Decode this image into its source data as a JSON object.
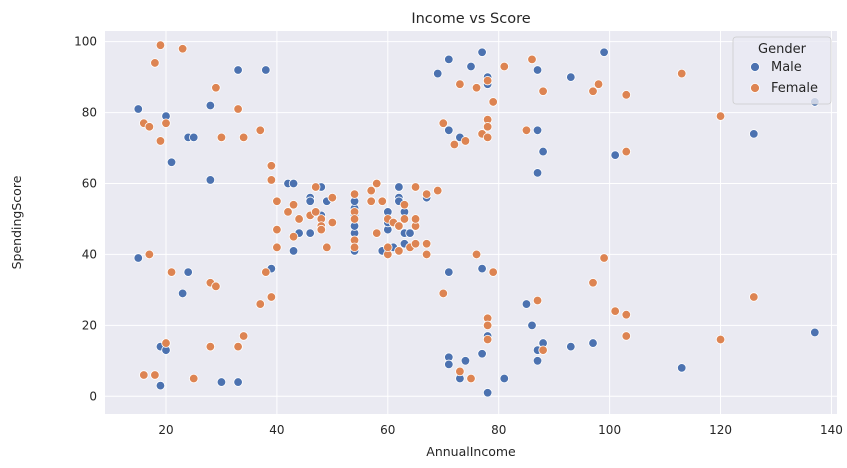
{
  "chart_data": {
    "type": "scatter",
    "title": "Income vs Score",
    "xlabel": "AnnualIncome",
    "ylabel": "SpendingScore",
    "xlim": [
      9,
      141
    ],
    "ylim": [
      -5,
      103
    ],
    "xticks": [
      20,
      40,
      60,
      80,
      100,
      120,
      140
    ],
    "yticks": [
      0,
      20,
      40,
      60,
      80,
      100
    ],
    "grid": true,
    "legend": {
      "title": "Gender",
      "placement": "top-right"
    },
    "series": [
      {
        "name": "Male",
        "color": "#4c72b0",
        "points": [
          [
            15,
            39
          ],
          [
            15,
            81
          ],
          [
            19,
            3
          ],
          [
            19,
            14
          ],
          [
            20,
            13
          ],
          [
            20,
            79
          ],
          [
            21,
            66
          ],
          [
            23,
            29
          ],
          [
            24,
            35
          ],
          [
            24,
            73
          ],
          [
            25,
            73
          ],
          [
            28,
            82
          ],
          [
            28,
            61
          ],
          [
            30,
            4
          ],
          [
            33,
            4
          ],
          [
            33,
            92
          ],
          [
            38,
            92
          ],
          [
            39,
            36
          ],
          [
            42,
            60
          ],
          [
            43,
            60
          ],
          [
            43,
            41
          ],
          [
            44,
            46
          ],
          [
            46,
            46
          ],
          [
            46,
            56
          ],
          [
            46,
            55
          ],
          [
            48,
            59
          ],
          [
            48,
            51
          ],
          [
            49,
            55
          ],
          [
            50,
            56
          ],
          [
            54,
            41
          ],
          [
            54,
            46
          ],
          [
            54,
            48
          ],
          [
            54,
            51
          ],
          [
            54,
            53
          ],
          [
            54,
            55
          ],
          [
            59,
            41
          ],
          [
            60,
            52
          ],
          [
            60,
            47
          ],
          [
            60,
            49
          ],
          [
            61,
            42
          ],
          [
            62,
            56
          ],
          [
            62,
            55
          ],
          [
            62,
            59
          ],
          [
            63,
            43
          ],
          [
            63,
            46
          ],
          [
            63,
            52
          ],
          [
            64,
            46
          ],
          [
            67,
            56
          ],
          [
            69,
            91
          ],
          [
            71,
            95
          ],
          [
            71,
            75
          ],
          [
            71,
            35
          ],
          [
            71,
            11
          ],
          [
            71,
            9
          ],
          [
            73,
            73
          ],
          [
            73,
            5
          ],
          [
            74,
            10
          ],
          [
            75,
            93
          ],
          [
            77,
            97
          ],
          [
            77,
            36
          ],
          [
            77,
            12
          ],
          [
            78,
            90
          ],
          [
            78,
            88
          ],
          [
            78,
            17
          ],
          [
            78,
            1
          ],
          [
            81,
            5
          ],
          [
            85,
            26
          ],
          [
            86,
            20
          ],
          [
            87,
            92
          ],
          [
            87,
            75
          ],
          [
            87,
            63
          ],
          [
            87,
            13
          ],
          [
            87,
            10
          ],
          [
            88,
            69
          ],
          [
            88,
            15
          ],
          [
            93,
            90
          ],
          [
            93,
            14
          ],
          [
            97,
            15
          ],
          [
            99,
            97
          ],
          [
            101,
            68
          ],
          [
            113,
            8
          ],
          [
            126,
            74
          ],
          [
            137,
            83
          ],
          [
            137,
            18
          ]
        ]
      },
      {
        "name": "Female",
        "color": "#dd8452",
        "points": [
          [
            16,
            6
          ],
          [
            16,
            77
          ],
          [
            17,
            40
          ],
          [
            17,
            76
          ],
          [
            18,
            6
          ],
          [
            18,
            94
          ],
          [
            19,
            99
          ],
          [
            19,
            72
          ],
          [
            20,
            15
          ],
          [
            20,
            77
          ],
          [
            21,
            35
          ],
          [
            23,
            98
          ],
          [
            25,
            5
          ],
          [
            28,
            14
          ],
          [
            28,
            32
          ],
          [
            29,
            31
          ],
          [
            29,
            87
          ],
          [
            30,
            73
          ],
          [
            33,
            14
          ],
          [
            33,
            81
          ],
          [
            34,
            17
          ],
          [
            34,
            73
          ],
          [
            37,
            26
          ],
          [
            37,
            75
          ],
          [
            38,
            35
          ],
          [
            39,
            28
          ],
          [
            39,
            61
          ],
          [
            39,
            65
          ],
          [
            40,
            55
          ],
          [
            40,
            47
          ],
          [
            40,
            42
          ],
          [
            42,
            52
          ],
          [
            43,
            54
          ],
          [
            43,
            45
          ],
          [
            44,
            50
          ],
          [
            46,
            51
          ],
          [
            47,
            52
          ],
          [
            47,
            59
          ],
          [
            48,
            50
          ],
          [
            48,
            48
          ],
          [
            48,
            47
          ],
          [
            49,
            42
          ],
          [
            50,
            49
          ],
          [
            50,
            56
          ],
          [
            54,
            57
          ],
          [
            54,
            44
          ],
          [
            54,
            42
          ],
          [
            54,
            52
          ],
          [
            54,
            50
          ],
          [
            57,
            58
          ],
          [
            57,
            55
          ],
          [
            58,
            60
          ],
          [
            58,
            46
          ],
          [
            59,
            55
          ],
          [
            60,
            40
          ],
          [
            60,
            42
          ],
          [
            60,
            50
          ],
          [
            61,
            49
          ],
          [
            62,
            41
          ],
          [
            62,
            48
          ],
          [
            63,
            50
          ],
          [
            63,
            54
          ],
          [
            64,
            42
          ],
          [
            65,
            59
          ],
          [
            65,
            48
          ],
          [
            65,
            50
          ],
          [
            65,
            43
          ],
          [
            67,
            43
          ],
          [
            67,
            40
          ],
          [
            67,
            57
          ],
          [
            69,
            58
          ],
          [
            70,
            77
          ],
          [
            70,
            29
          ],
          [
            72,
            71
          ],
          [
            73,
            88
          ],
          [
            74,
            72
          ],
          [
            75,
            5
          ],
          [
            76,
            40
          ],
          [
            76,
            87
          ],
          [
            77,
            74
          ],
          [
            78,
            89
          ],
          [
            78,
            78
          ],
          [
            78,
            73
          ],
          [
            78,
            76
          ],
          [
            78,
            22
          ],
          [
            78,
            20
          ],
          [
            78,
            16
          ],
          [
            79,
            83
          ],
          [
            79,
            35
          ],
          [
            81,
            93
          ],
          [
            73,
            7
          ],
          [
            85,
            75
          ],
          [
            86,
            95
          ],
          [
            87,
            27
          ],
          [
            88,
            86
          ],
          [
            88,
            13
          ],
          [
            97,
            32
          ],
          [
            97,
            86
          ],
          [
            98,
            88
          ],
          [
            99,
            39
          ],
          [
            101,
            24
          ],
          [
            103,
            85
          ],
          [
            103,
            69
          ],
          [
            103,
            23
          ],
          [
            103,
            17
          ],
          [
            113,
            91
          ],
          [
            120,
            79
          ],
          [
            120,
            16
          ],
          [
            126,
            28
          ]
        ]
      }
    ]
  }
}
